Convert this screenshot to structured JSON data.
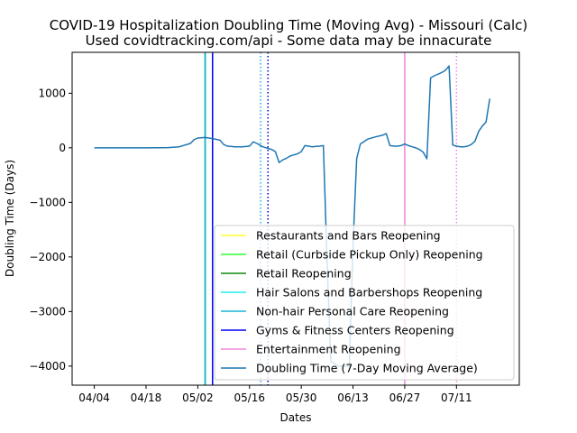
{
  "chart_data": {
    "type": "line",
    "title": "COVID-19 Hospitalization Doubling Time (Moving Avg) - Missouri (Calc)",
    "subtitle": "Used covidtracking.com/api - Some data may be innacurate",
    "xlabel": "Dates",
    "ylabel": "Doubling Time (Days)",
    "xlim": [
      "2020-03-29",
      "2020-07-28"
    ],
    "ylim": [
      -4350,
      1750
    ],
    "x_ticks": [
      "04/04",
      "04/18",
      "05/02",
      "05/16",
      "05/30",
      "06/13",
      "06/27",
      "07/11"
    ],
    "x_tick_dates": [
      "2020-04-04",
      "2020-04-18",
      "2020-05-02",
      "2020-05-16",
      "2020-05-30",
      "2020-06-13",
      "2020-06-27",
      "2020-07-11"
    ],
    "y_ticks": [
      1000,
      0,
      -1000,
      -2000,
      -3000,
      -4000
    ],
    "y_tick_labels": [
      "1000",
      "0",
      "−1000",
      "−2000",
      "−3000",
      "−4000"
    ],
    "grid": false,
    "legend_position": "lower-right",
    "series": [
      {
        "name": "Doubling Time (7-Day Moving Average)",
        "color": "#1f77b4",
        "points": [
          [
            "2020-04-04",
            0
          ],
          [
            "2020-04-10",
            0
          ],
          [
            "2020-04-18",
            0
          ],
          [
            "2020-04-24",
            5
          ],
          [
            "2020-04-27",
            20
          ],
          [
            "2020-04-30",
            80
          ],
          [
            "2020-05-01",
            150
          ],
          [
            "2020-05-02",
            180
          ],
          [
            "2020-05-04",
            190
          ],
          [
            "2020-05-06",
            170
          ],
          [
            "2020-05-08",
            140
          ],
          [
            "2020-05-09",
            60
          ],
          [
            "2020-05-10",
            30
          ],
          [
            "2020-05-12",
            20
          ],
          [
            "2020-05-14",
            20
          ],
          [
            "2020-05-16",
            30
          ],
          [
            "2020-05-17",
            110
          ],
          [
            "2020-05-18",
            80
          ],
          [
            "2020-05-19",
            40
          ],
          [
            "2020-05-20",
            10
          ],
          [
            "2020-05-21",
            -10
          ],
          [
            "2020-05-22",
            -30
          ],
          [
            "2020-05-23",
            -70
          ],
          [
            "2020-05-24",
            -270
          ],
          [
            "2020-05-25",
            -220
          ],
          [
            "2020-05-26",
            -190
          ],
          [
            "2020-05-27",
            -150
          ],
          [
            "2020-05-28",
            -130
          ],
          [
            "2020-05-29",
            -110
          ],
          [
            "2020-05-30",
            -70
          ],
          [
            "2020-05-31",
            40
          ],
          [
            "2020-06-01",
            30
          ],
          [
            "2020-06-02",
            20
          ],
          [
            "2020-06-03",
            25
          ],
          [
            "2020-06-04",
            30
          ],
          [
            "2020-06-05",
            40
          ],
          [
            "2020-06-06",
            -2100
          ],
          [
            "2020-06-07",
            -3900
          ],
          [
            "2020-06-08",
            -3950
          ],
          [
            "2020-06-09",
            -4000
          ],
          [
            "2020-06-10",
            -4000
          ],
          [
            "2020-06-11",
            -4000
          ],
          [
            "2020-06-12",
            -4000
          ],
          [
            "2020-06-13",
            -1800
          ],
          [
            "2020-06-14",
            -200
          ],
          [
            "2020-06-15",
            70
          ],
          [
            "2020-06-17",
            160
          ],
          [
            "2020-06-19",
            200
          ],
          [
            "2020-06-21",
            230
          ],
          [
            "2020-06-22",
            260
          ],
          [
            "2020-06-23",
            40
          ],
          [
            "2020-06-24",
            30
          ],
          [
            "2020-06-25",
            30
          ],
          [
            "2020-06-26",
            40
          ],
          [
            "2020-06-27",
            70
          ],
          [
            "2020-06-28",
            40
          ],
          [
            "2020-06-29",
            20
          ],
          [
            "2020-06-30",
            0
          ],
          [
            "2020-07-01",
            -30
          ],
          [
            "2020-07-02",
            -80
          ],
          [
            "2020-07-03",
            -200
          ],
          [
            "2020-07-04",
            1280
          ],
          [
            "2020-07-05",
            1320
          ],
          [
            "2020-07-07",
            1380
          ],
          [
            "2020-07-08",
            1420
          ],
          [
            "2020-07-09",
            1500
          ],
          [
            "2020-07-10",
            50
          ],
          [
            "2020-07-11",
            30
          ],
          [
            "2020-07-12",
            20
          ],
          [
            "2020-07-13",
            20
          ],
          [
            "2020-07-14",
            30
          ],
          [
            "2020-07-15",
            60
          ],
          [
            "2020-07-16",
            120
          ],
          [
            "2020-07-17",
            300
          ],
          [
            "2020-07-18",
            400
          ],
          [
            "2020-07-19",
            470
          ],
          [
            "2020-07-20",
            900
          ]
        ]
      }
    ],
    "vlines": [
      {
        "name": "Restaurants and Bars Reopening",
        "date": "2020-05-04",
        "color": "#ffff33",
        "style": "solid"
      },
      {
        "name": "Retail (Curbside Pickup Only) Reopening",
        "date": "2020-05-04",
        "color": "#33ff33",
        "style": "solid"
      },
      {
        "name": "Retail Reopening",
        "date": "2020-05-04",
        "color": "#118811",
        "style": "solid"
      },
      {
        "name": "Hair Salons and Barbershops Reopening",
        "date": "2020-05-04",
        "color": "#22eeee",
        "style": "solid"
      },
      {
        "name": "Non-hair Personal Care Reopening",
        "date": "2020-05-04",
        "color": "#1ab0d8",
        "style": "solid"
      },
      {
        "name": "Gyms & Fitness Centers Reopening",
        "date": "2020-05-06",
        "color": "#0000ff",
        "style": "solid"
      },
      {
        "name": "Entertainment Reopening",
        "date": "2020-06-27",
        "color": "#ee88dd",
        "style": "solid"
      },
      {
        "name": "Non-hair Personal Care Reopening (later)",
        "date": "2020-05-19",
        "color": "#1ab0d8",
        "style": "dotted",
        "legend": false
      },
      {
        "name": "Gyms & Fitness Centers Reopening (later)",
        "date": "2020-05-21",
        "color": "#0000cc",
        "style": "dotted",
        "legend": false
      },
      {
        "name": "Entertainment Reopening (later)",
        "date": "2020-07-11",
        "color": "#ee88dd",
        "style": "dotted",
        "legend": false
      }
    ],
    "legend_entries": [
      {
        "label": "Restaurants and Bars Reopening",
        "color": "#ffff33"
      },
      {
        "label": "Retail (Curbside Pickup Only) Reopening",
        "color": "#33ff33"
      },
      {
        "label": "Retail Reopening",
        "color": "#118811"
      },
      {
        "label": "Hair Salons and Barbershops Reopening",
        "color": "#22eeee"
      },
      {
        "label": "Non-hair Personal Care Reopening",
        "color": "#1ab0d8"
      },
      {
        "label": "Gyms & Fitness Centers Reopening",
        "color": "#0000ff"
      },
      {
        "label": "Entertainment Reopening",
        "color": "#ee88dd"
      },
      {
        "label": "Doubling Time (7-Day Moving Average)",
        "color": "#1f77b4"
      }
    ]
  }
}
